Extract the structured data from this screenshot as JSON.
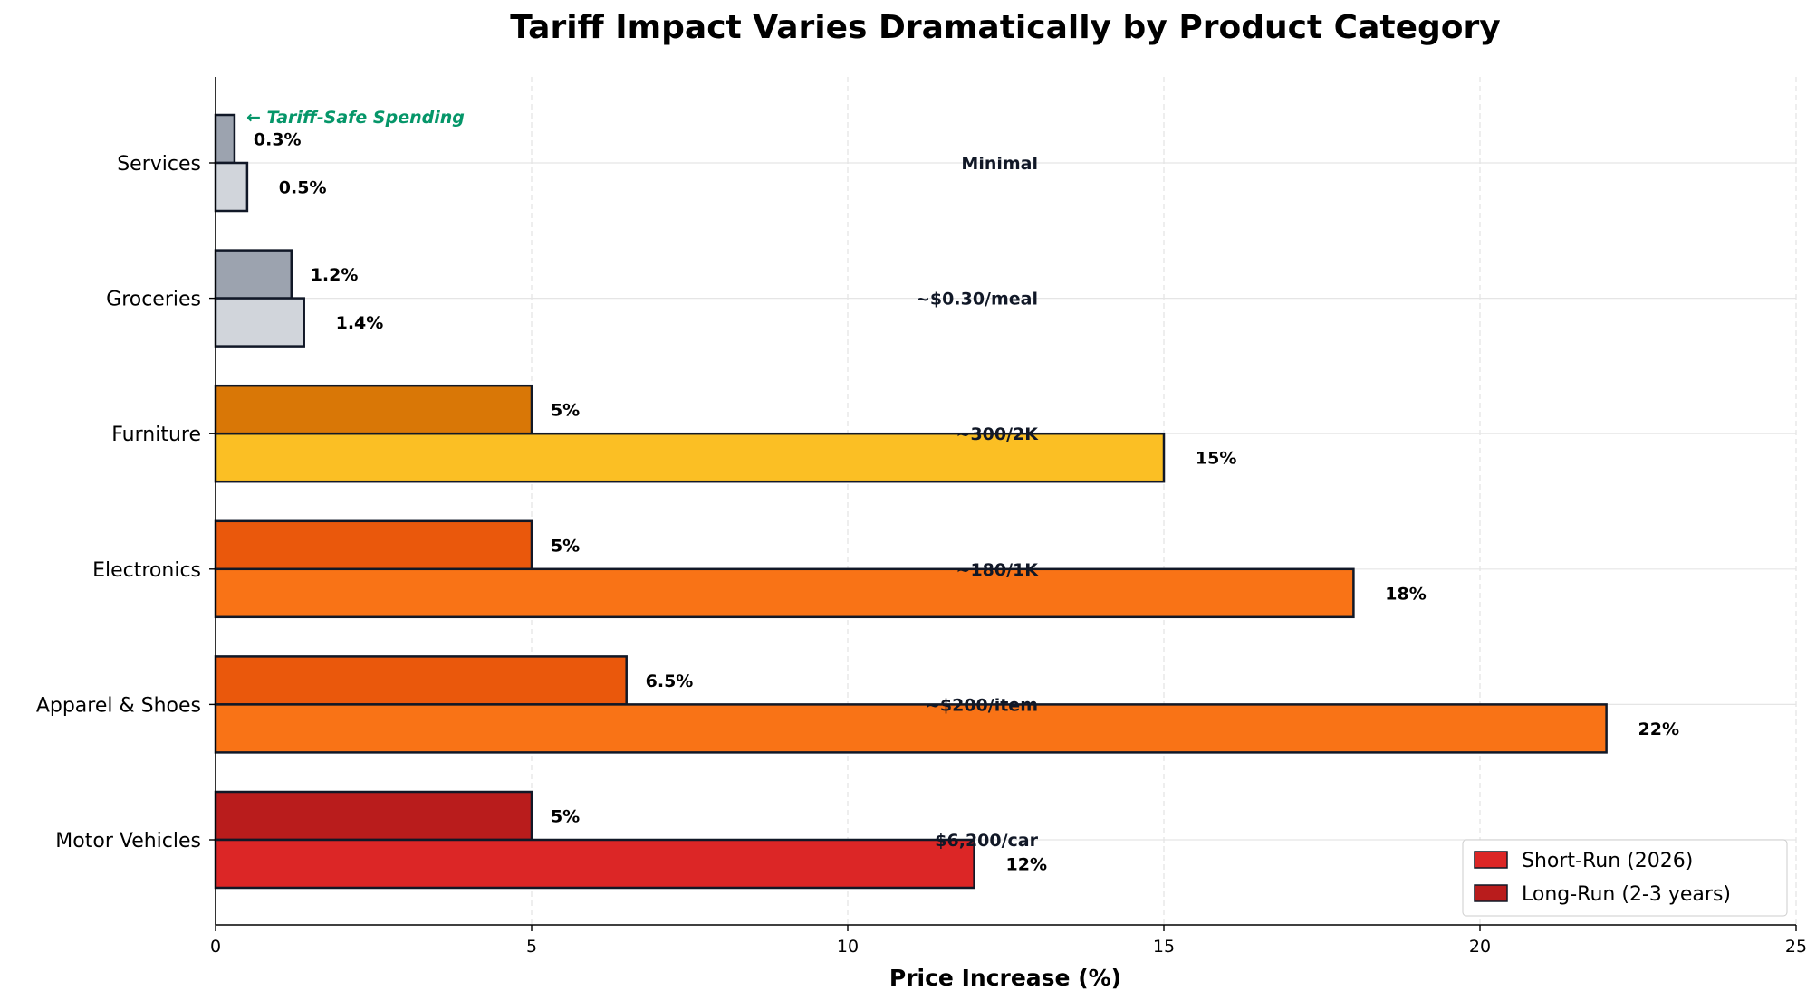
{
  "chart_data": {
    "type": "bar",
    "orientation": "horizontal",
    "title": "Tariff Impact Varies Dramatically by Product Category",
    "xlabel": "Price Increase (%)",
    "ylabel": "",
    "xlim": [
      0,
      25
    ],
    "xticks": [
      0,
      5,
      10,
      15,
      20,
      25
    ],
    "grid": true,
    "legend_position": "bottom-right",
    "categories": [
      "Motor Vehicles",
      "Apparel & Shoes",
      "Electronics",
      "Furniture",
      "Groceries",
      "Services"
    ],
    "series": [
      {
        "name": "Short-Run (2026)",
        "values": [
          12,
          22,
          18,
          15,
          1.4,
          0.5
        ],
        "labels": [
          "12%",
          "22%",
          "18%",
          "15%",
          "1.4%",
          "0.5%"
        ],
        "colors": [
          "#dc2626",
          "#f97316",
          "#f97316",
          "#fbbf24",
          "#d1d5db",
          "#d1d5db"
        ],
        "legend_color": "#dc2626"
      },
      {
        "name": "Long-Run (2-3 years)",
        "values": [
          5,
          6.5,
          5,
          5,
          1.2,
          0.3
        ],
        "labels": [
          "5%",
          "6.5%",
          "5%",
          "5%",
          "1.2%",
          "0.3%"
        ],
        "colors": [
          "#b91c1c",
          "#ea580c",
          "#ea580c",
          "#d97706",
          "#9ca3af",
          "#9ca3af"
        ],
        "legend_color": "#b91c1c"
      }
    ],
    "cost_annotations": [
      "$6,200/car",
      "~$200/item",
      "~180/1K",
      "~300/2K",
      "~$0.30/meal",
      "Minimal"
    ],
    "callout": {
      "text": "← Tariff-Safe Spending",
      "color": "#059669"
    }
  }
}
